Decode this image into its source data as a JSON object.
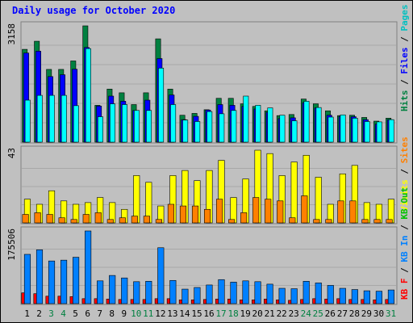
{
  "chart_data": {
    "type": "bar",
    "title": "Daily usage for October 2020",
    "categories": [
      "1",
      "2",
      "3",
      "4",
      "5",
      "6",
      "7",
      "8",
      "9",
      "10",
      "11",
      "12",
      "13",
      "14",
      "15",
      "16",
      "17",
      "18",
      "19",
      "20",
      "21",
      "22",
      "23",
      "24",
      "25",
      "26",
      "27",
      "28",
      "29",
      "30",
      "31"
    ],
    "weekend_color": "#008040",
    "weekday_color": "#000000",
    "weekend_days": [
      "3",
      "4",
      "10",
      "11",
      "17",
      "18",
      "24",
      "25",
      "31"
    ],
    "panels": [
      {
        "id": "top",
        "max_label": "3158",
        "ylim": [
          0,
          3158
        ],
        "side_labels": [
          {
            "text": "Hits",
            "color": "#008040"
          },
          {
            "text": " / ",
            "color": "#000000"
          },
          {
            "text": "Files",
            "color": "#0000ff"
          },
          {
            "text": " / ",
            "color": "#000000"
          },
          {
            "text": "Pages",
            "color": "#00c0c0"
          }
        ],
        "series": [
          {
            "name": "Hits",
            "color": "#008040",
            "values": [
              2520,
              2740,
              1975,
              1975,
              2205,
              3158,
              1000,
              1440,
              1340,
              1020,
              1340,
              2805,
              1440,
              730,
              780,
              880,
              1190,
              1190,
              1040,
              970,
              850,
              720,
              750,
              1170,
              1040,
              850,
              720,
              730,
              670,
              570,
              650
            ]
          },
          {
            "name": "Files",
            "color": "#0000ff",
            "values": [
              2420,
              2470,
              1780,
              1830,
              1980,
              2570,
              980,
              1250,
              1110,
              860,
              1140,
              2270,
              1280,
              610,
              700,
              870,
              1020,
              1000,
              970,
              900,
              810,
              640,
              660,
              1070,
              930,
              730,
              700,
              690,
              610,
              490,
              610
            ]
          },
          {
            "name": "Pages",
            "color": "#00ffff",
            "values": [
              1140,
              1270,
              1270,
              1270,
              990,
              2540,
              690,
              1040,
              1020,
              860,
              860,
              2010,
              1020,
              600,
              560,
              830,
              770,
              860,
              1250,
              1000,
              930,
              730,
              580,
              1110,
              940,
              680,
              740,
              650,
              560,
              550,
              610
            ]
          }
        ]
      },
      {
        "id": "middle",
        "max_label": "43",
        "ylim": [
          0,
          43
        ],
        "side_labels": [
          {
            "text": "Visits",
            "color": "#ffff00"
          },
          {
            "text": " / ",
            "color": "#000000"
          },
          {
            "text": "Sites",
            "color": "#ff8000"
          }
        ],
        "series": [
          {
            "name": "Visits",
            "color": "#ffff00",
            "values": [
              14,
              11,
              19,
              13,
              11,
              12,
              15,
              12,
              8,
              28,
              24,
              10,
              28,
              31,
              25,
              31,
              37,
              15,
              26,
              43,
              41,
              28,
              36,
              40,
              27,
              11,
              29,
              34,
              12,
              11,
              14
            ]
          },
          {
            "name": "Sites",
            "color": "#ff8000",
            "values": [
              5,
              6,
              5,
              3,
              2,
              5,
              6,
              2,
              3,
              4,
              4,
              2,
              11,
              10,
              10,
              8,
              14,
              2,
              6,
              15,
              14,
              13,
              3,
              16,
              2,
              2,
              13,
              13,
              2,
              2,
              2
            ]
          }
        ]
      },
      {
        "id": "bottom",
        "max_label": "175506",
        "ylim": [
          0,
          175506
        ],
        "side_labels": [
          {
            "text": "KB F",
            "color": "#ff0000"
          },
          {
            "text": " / ",
            "color": "#000000"
          },
          {
            "text": "KB In",
            "color": "#0080ff"
          },
          {
            "text": " / ",
            "color": "#000000"
          },
          {
            "text": "KB Out",
            "color": "#00c000"
          }
        ],
        "series": [
          {
            "name": "KB F",
            "color": "#ff0000",
            "values": [
              26000,
              24000,
              18000,
              18000,
              17000,
              12000,
              12000,
              11000,
              10000,
              10000,
              10000,
              12000,
              12000,
              9000,
              9000,
              10000,
              11000,
              11000,
              9000,
              9000,
              11000,
              9000,
              8000,
              10000,
              12000,
              11000,
              12000,
              10000,
              10000,
              9000,
              10000
            ]
          },
          {
            "name": "KB In",
            "color": "#0080ff",
            "values": [
              119000,
              130000,
              103000,
              105000,
              112000,
              175506,
              55000,
              68000,
              62000,
              53000,
              54000,
              135000,
              56000,
              35000,
              39000,
              45000,
              58000,
              52000,
              55000,
              53000,
              47000,
              37000,
              36000,
              54000,
              50000,
              44000,
              37000,
              34000,
              31000,
              30000,
              33000
            ]
          }
        ]
      }
    ]
  }
}
